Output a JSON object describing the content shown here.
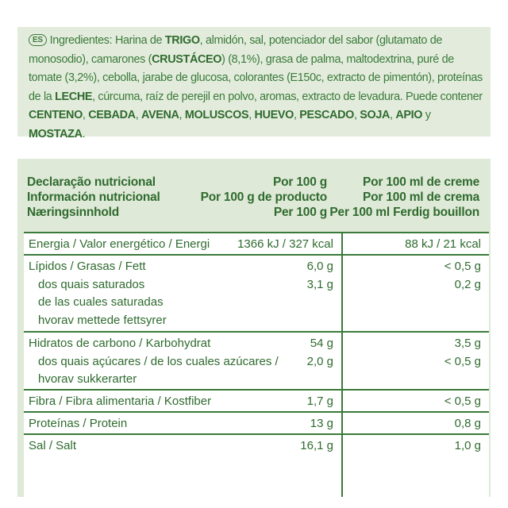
{
  "ingredients": {
    "lang": "ES",
    "segments": [
      {
        "t": "Ingredientes: Harina de ",
        "b": false
      },
      {
        "t": "TRIGO",
        "b": true
      },
      {
        "t": ", almidón, sal, potenciador del sabor (glutamato de monosodio), camarones (",
        "b": false
      },
      {
        "t": "CRUSTÁCEO",
        "b": true
      },
      {
        "t": ") (8,1%), grasa de palma, maltodextrina, puré de tomate (3,2%), cebolla, jarabe de glucosa, colorantes (E150c, extracto de pimentón), proteínas de la ",
        "b": false
      },
      {
        "t": "LECHE",
        "b": true
      },
      {
        "t": ", cúrcuma, raíz de perejil en polvo, aromas, extracto de levadura. Puede contener ",
        "b": false
      },
      {
        "t": "CENTENO",
        "b": true
      },
      {
        "t": ", ",
        "b": false
      },
      {
        "t": "CEBADA",
        "b": true
      },
      {
        "t": ", ",
        "b": false
      },
      {
        "t": "AVENA",
        "b": true
      },
      {
        "t": ", ",
        "b": false
      },
      {
        "t": "MOLUSCOS",
        "b": true
      },
      {
        "t": ", ",
        "b": false
      },
      {
        "t": "HUEVO",
        "b": true
      },
      {
        "t": ", ",
        "b": false
      },
      {
        "t": "PESCADO",
        "b": true
      },
      {
        "t": ", ",
        "b": false
      },
      {
        "t": "SOJA",
        "b": true
      },
      {
        "t": ", ",
        "b": false
      },
      {
        "t": "APIO",
        "b": true
      },
      {
        "t": " y ",
        "b": false
      },
      {
        "t": "MOSTAZA",
        "b": true
      },
      {
        "t": ".",
        "b": false
      }
    ]
  },
  "nutrition": {
    "header": {
      "left": [
        "Declaração nutricional",
        "Información nutricional",
        "Næringsinnhold"
      ],
      "mid": [
        "Por 100 g",
        "Por 100 g de producto"
      ],
      "right": [
        "Por 100 ml de creme",
        "Por 100 ml de crema"
      ],
      "bottom_mid": "Per 100 g",
      "bottom_right": "Per 100 ml Ferdig bouillon"
    },
    "rows": [
      {
        "labels": [
          "Energia / Valor energético / Energi"
        ],
        "v1": [
          "1366 kJ / 327 kcal"
        ],
        "v2": [
          "88 kJ / 21 kcal"
        ]
      },
      {
        "labels": [
          "Lípidos / Grasas / Fett",
          "dos quais saturados",
          "de las cuales saturadas",
          "hvorav mettede fettsyrer"
        ],
        "v1": [
          "6,0 g",
          "3,1 g"
        ],
        "v2": [
          "< 0,5 g",
          "0,2 g"
        ]
      },
      {
        "labels": [
          "Hidratos de carbono / Karbohydrat",
          "dos quais açúcares / de los cuales azúcares /",
          "hvorav sukkerarter"
        ],
        "v1": [
          "54 g",
          "2,0 g"
        ],
        "v2": [
          "3,5 g",
          "< 0,5 g"
        ]
      },
      {
        "labels": [
          "Fibra / Fibra alimentaria / Kostfiber"
        ],
        "v1": [
          "1,7 g"
        ],
        "v2": [
          "< 0,5 g"
        ]
      },
      {
        "labels": [
          "Proteínas / Protein"
        ],
        "v1": [
          "13 g"
        ],
        "v2": [
          "0,8 g"
        ]
      },
      {
        "labels": [
          "Sal / Salt"
        ],
        "v1": [
          "16,1 g"
        ],
        "v2": [
          "1,0 g"
        ]
      }
    ]
  }
}
